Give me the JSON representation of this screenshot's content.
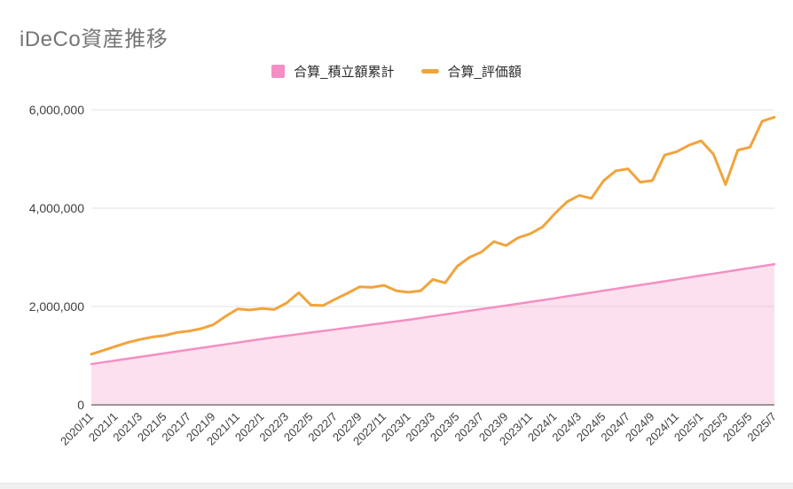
{
  "title": "iDeCo資産推移",
  "legend": [
    {
      "label": "合算_積立額累計",
      "marker": "square",
      "color": "#F48FC3"
    },
    {
      "label": "合算_評価額",
      "marker": "line",
      "color": "#F1A43C"
    }
  ],
  "colors": {
    "title": "#757575",
    "axis_label": "#3f3f3f",
    "gridline": "#e3e3e3",
    "axis_line": "#6e6e6e",
    "area_fill": "#F48FC3",
    "area_fill_opacity": 0.28,
    "area_border": "#F48FC3",
    "line": "#F1A43C",
    "background": "#ffffff"
  },
  "chart_data": {
    "type": "area",
    "title": "iDeCo資産推移",
    "xlabel": "",
    "ylabel": "",
    "grid": true,
    "legend_position": "top",
    "ylim": [
      0,
      6000000
    ],
    "yticks": [
      0,
      2000000,
      4000000,
      6000000
    ],
    "ytick_labels": [
      "0",
      "2,000,000",
      "4,000,000",
      "6,000,000"
    ],
    "x_tick_every": 2,
    "x": [
      "2020/11",
      "2020/12",
      "2021/1",
      "2021/2",
      "2021/3",
      "2021/4",
      "2021/5",
      "2021/6",
      "2021/7",
      "2021/8",
      "2021/9",
      "2021/10",
      "2021/11",
      "2021/12",
      "2022/1",
      "2022/2",
      "2022/3",
      "2022/4",
      "2022/5",
      "2022/6",
      "2022/7",
      "2022/8",
      "2022/9",
      "2022/10",
      "2022/11",
      "2022/12",
      "2023/1",
      "2023/2",
      "2023/3",
      "2023/4",
      "2023/5",
      "2023/6",
      "2023/7",
      "2023/8",
      "2023/9",
      "2023/10",
      "2023/11",
      "2023/12",
      "2024/1",
      "2024/2",
      "2024/3",
      "2024/4",
      "2024/5",
      "2024/6",
      "2024/7",
      "2024/8",
      "2024/9",
      "2024/10",
      "2024/11",
      "2024/12",
      "2025/1",
      "2025/2",
      "2025/3",
      "2025/4",
      "2025/5",
      "2025/6",
      "2025/7"
    ],
    "series": [
      {
        "name": "合算_積立額累計",
        "type": "area",
        "color": "#F48FC3",
        "values": [
          830000,
          866000,
          903000,
          939000,
          976000,
          1012000,
          1049000,
          1085000,
          1121000,
          1158000,
          1194000,
          1231000,
          1267000,
          1304000,
          1340000,
          1373000,
          1405000,
          1438000,
          1470000,
          1503000,
          1535000,
          1568000,
          1600000,
          1633000,
          1665000,
          1698000,
          1730000,
          1766000,
          1803000,
          1839000,
          1875000,
          1912000,
          1948000,
          1985000,
          2021000,
          2057000,
          2094000,
          2130000,
          2168000,
          2207000,
          2245000,
          2284000,
          2322000,
          2361000,
          2399000,
          2437000,
          2476000,
          2514000,
          2553000,
          2591000,
          2630000,
          2668000,
          2706000,
          2745000,
          2783000,
          2822000,
          2860000
        ]
      },
      {
        "name": "合算_評価額",
        "type": "line",
        "color": "#F1A43C",
        "values": [
          1030000,
          1110000,
          1190000,
          1270000,
          1330000,
          1380000,
          1410000,
          1470000,
          1500000,
          1550000,
          1630000,
          1800000,
          1950000,
          1930000,
          1960000,
          1940000,
          2070000,
          2280000,
          2030000,
          2020000,
          2150000,
          2270000,
          2400000,
          2390000,
          2430000,
          2320000,
          2290000,
          2320000,
          2550000,
          2480000,
          2820000,
          3000000,
          3110000,
          3320000,
          3240000,
          3400000,
          3480000,
          3620000,
          3890000,
          4130000,
          4260000,
          4200000,
          4560000,
          4760000,
          4800000,
          4530000,
          4560000,
          5080000,
          5150000,
          5280000,
          5370000,
          5100000,
          4480000,
          5180000,
          5240000,
          5770000,
          5850000
        ]
      }
    ]
  }
}
